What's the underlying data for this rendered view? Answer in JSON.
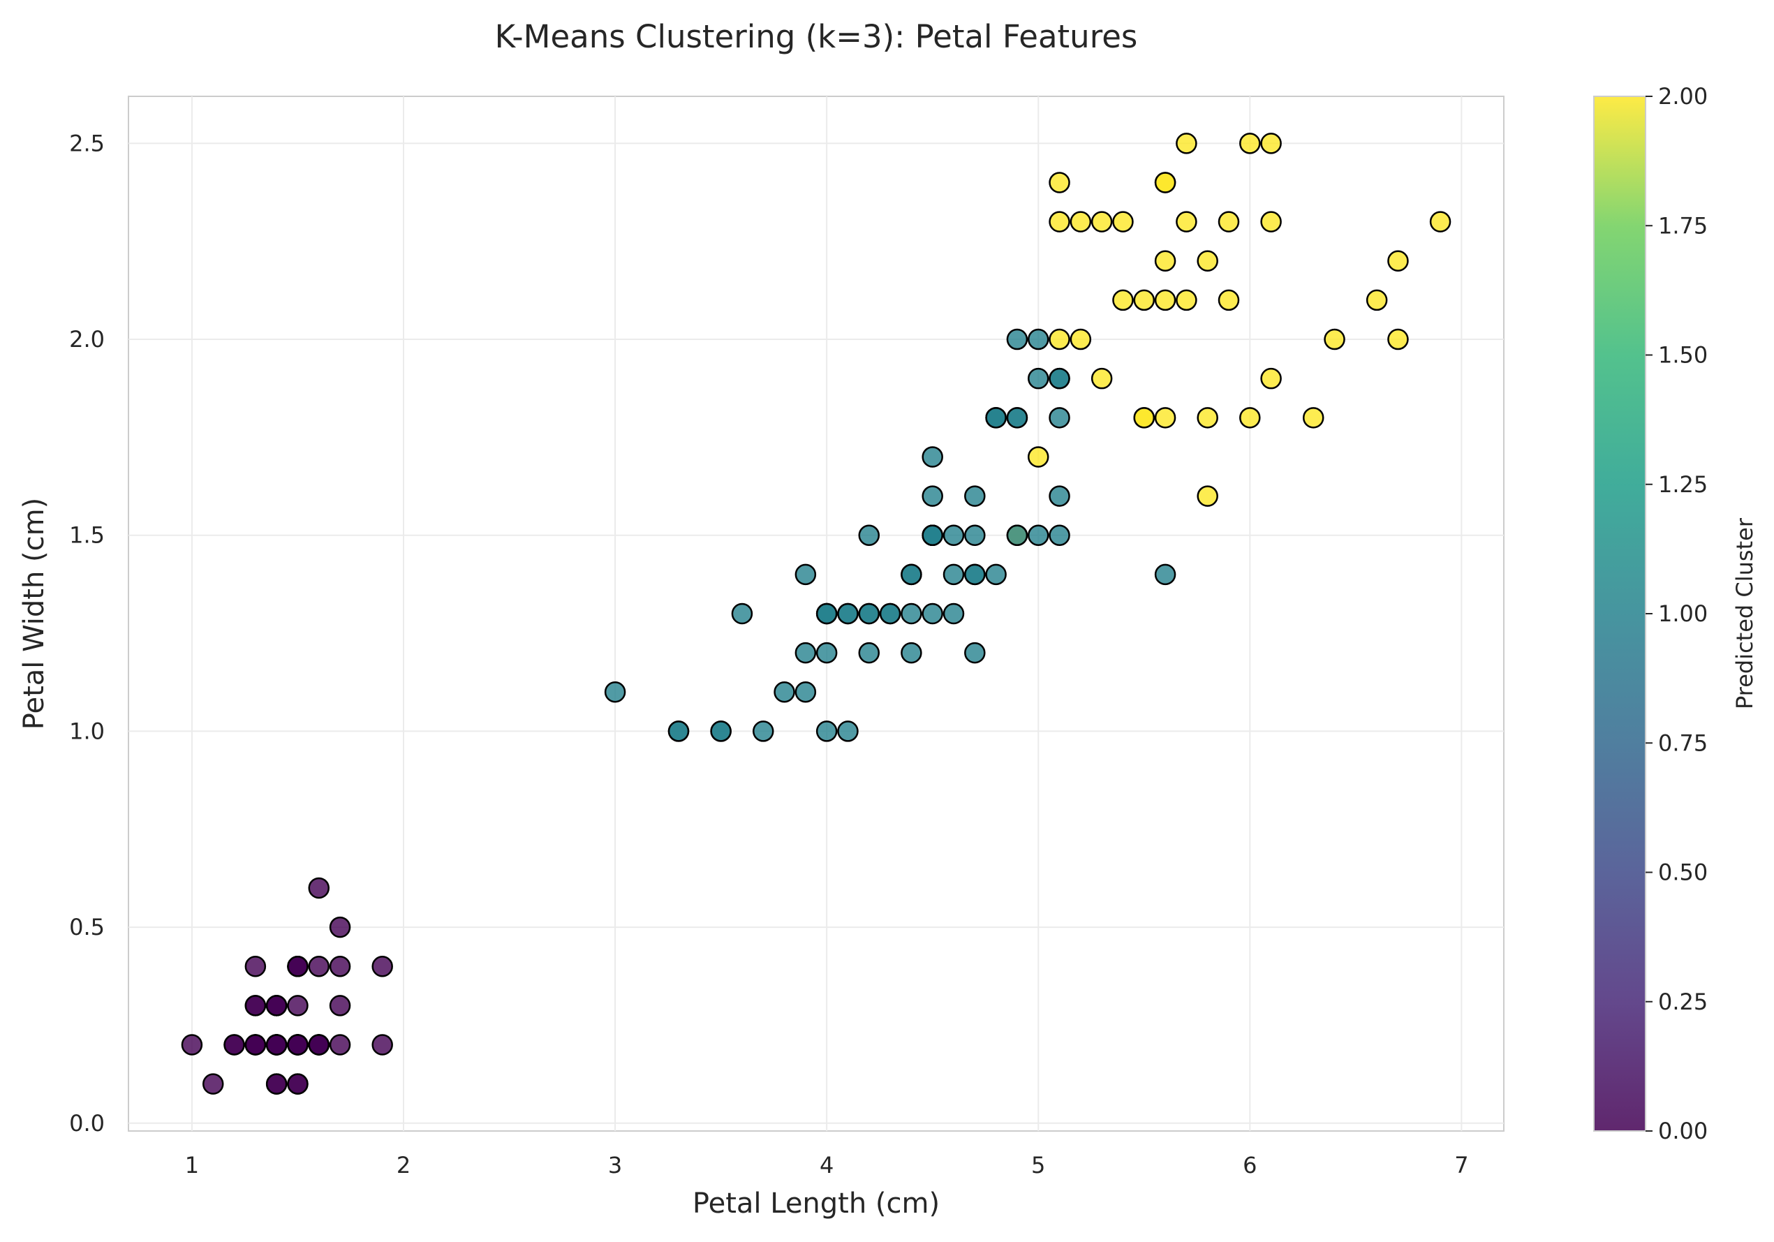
{
  "chart_data": {
    "type": "scatter",
    "title": "K-Means Clustering (k=3): Petal Features",
    "xlabel": "Petal Length (cm)",
    "ylabel": "Petal Width (cm)",
    "xlim": [
      0.7,
      7.2
    ],
    "ylim": [
      -0.02,
      2.62
    ],
    "xticks": [
      "1",
      "2",
      "3",
      "4",
      "5",
      "6",
      "7"
    ],
    "yticks": [
      "0.0",
      "0.5",
      "1.0",
      "1.5",
      "2.0",
      "2.5"
    ],
    "grid": true,
    "colorbar": {
      "label": "Predicted Cluster",
      "range": [
        0.0,
        2.0
      ],
      "ticks": [
        "0.00",
        "0.25",
        "0.50",
        "0.75",
        "1.00",
        "1.25",
        "1.50",
        "1.75",
        "2.00"
      ],
      "colormap": "viridis"
    },
    "points": [
      {
        "x": 1.4,
        "y": 0.2,
        "c": 0
      },
      {
        "x": 1.4,
        "y": 0.2,
        "c": 0
      },
      {
        "x": 1.3,
        "y": 0.2,
        "c": 0
      },
      {
        "x": 1.5,
        "y": 0.2,
        "c": 0
      },
      {
        "x": 1.4,
        "y": 0.2,
        "c": 0
      },
      {
        "x": 1.7,
        "y": 0.4,
        "c": 0
      },
      {
        "x": 1.4,
        "y": 0.3,
        "c": 0
      },
      {
        "x": 1.5,
        "y": 0.2,
        "c": 0
      },
      {
        "x": 1.4,
        "y": 0.2,
        "c": 0
      },
      {
        "x": 1.5,
        "y": 0.1,
        "c": 0
      },
      {
        "x": 1.5,
        "y": 0.2,
        "c": 0
      },
      {
        "x": 1.6,
        "y": 0.2,
        "c": 0
      },
      {
        "x": 1.4,
        "y": 0.1,
        "c": 0
      },
      {
        "x": 1.1,
        "y": 0.1,
        "c": 0
      },
      {
        "x": 1.2,
        "y": 0.2,
        "c": 0
      },
      {
        "x": 1.5,
        "y": 0.4,
        "c": 0
      },
      {
        "x": 1.3,
        "y": 0.4,
        "c": 0
      },
      {
        "x": 1.4,
        "y": 0.3,
        "c": 0
      },
      {
        "x": 1.7,
        "y": 0.3,
        "c": 0
      },
      {
        "x": 1.5,
        "y": 0.3,
        "c": 0
      },
      {
        "x": 1.7,
        "y": 0.2,
        "c": 0
      },
      {
        "x": 1.5,
        "y": 0.4,
        "c": 0
      },
      {
        "x": 1.0,
        "y": 0.2,
        "c": 0
      },
      {
        "x": 1.7,
        "y": 0.5,
        "c": 0
      },
      {
        "x": 1.9,
        "y": 0.2,
        "c": 0
      },
      {
        "x": 1.6,
        "y": 0.2,
        "c": 0
      },
      {
        "x": 1.6,
        "y": 0.4,
        "c": 0
      },
      {
        "x": 1.5,
        "y": 0.2,
        "c": 0
      },
      {
        "x": 1.4,
        "y": 0.2,
        "c": 0
      },
      {
        "x": 1.6,
        "y": 0.2,
        "c": 0
      },
      {
        "x": 1.6,
        "y": 0.2,
        "c": 0
      },
      {
        "x": 1.5,
        "y": 0.4,
        "c": 0
      },
      {
        "x": 1.5,
        "y": 0.1,
        "c": 0
      },
      {
        "x": 1.4,
        "y": 0.2,
        "c": 0
      },
      {
        "x": 1.5,
        "y": 0.2,
        "c": 0
      },
      {
        "x": 1.2,
        "y": 0.2,
        "c": 0
      },
      {
        "x": 1.3,
        "y": 0.2,
        "c": 0
      },
      {
        "x": 1.4,
        "y": 0.1,
        "c": 0
      },
      {
        "x": 1.3,
        "y": 0.2,
        "c": 0
      },
      {
        "x": 1.5,
        "y": 0.2,
        "c": 0
      },
      {
        "x": 1.3,
        "y": 0.3,
        "c": 0
      },
      {
        "x": 1.3,
        "y": 0.3,
        "c": 0
      },
      {
        "x": 1.3,
        "y": 0.2,
        "c": 0
      },
      {
        "x": 1.6,
        "y": 0.6,
        "c": 0
      },
      {
        "x": 1.9,
        "y": 0.4,
        "c": 0
      },
      {
        "x": 1.4,
        "y": 0.3,
        "c": 0
      },
      {
        "x": 1.6,
        "y": 0.2,
        "c": 0
      },
      {
        "x": 1.4,
        "y": 0.2,
        "c": 0
      },
      {
        "x": 1.5,
        "y": 0.2,
        "c": 0
      },
      {
        "x": 1.4,
        "y": 0.2,
        "c": 0
      },
      {
        "x": 4.7,
        "y": 1.4,
        "c": 1
      },
      {
        "x": 4.5,
        "y": 1.5,
        "c": 1
      },
      {
        "x": 4.9,
        "y": 1.5,
        "c": 2
      },
      {
        "x": 4.0,
        "y": 1.3,
        "c": 1
      },
      {
        "x": 4.6,
        "y": 1.5,
        "c": 1
      },
      {
        "x": 4.5,
        "y": 1.3,
        "c": 1
      },
      {
        "x": 4.7,
        "y": 1.6,
        "c": 1
      },
      {
        "x": 3.3,
        "y": 1.0,
        "c": 1
      },
      {
        "x": 4.6,
        "y": 1.3,
        "c": 1
      },
      {
        "x": 3.9,
        "y": 1.4,
        "c": 1
      },
      {
        "x": 3.5,
        "y": 1.0,
        "c": 1
      },
      {
        "x": 4.2,
        "y": 1.5,
        "c": 1
      },
      {
        "x": 4.0,
        "y": 1.0,
        "c": 1
      },
      {
        "x": 4.7,
        "y": 1.4,
        "c": 1
      },
      {
        "x": 3.6,
        "y": 1.3,
        "c": 1
      },
      {
        "x": 4.4,
        "y": 1.4,
        "c": 1
      },
      {
        "x": 4.5,
        "y": 1.5,
        "c": 1
      },
      {
        "x": 4.1,
        "y": 1.0,
        "c": 1
      },
      {
        "x": 4.5,
        "y": 1.5,
        "c": 1
      },
      {
        "x": 3.9,
        "y": 1.1,
        "c": 1
      },
      {
        "x": 4.8,
        "y": 1.8,
        "c": 1
      },
      {
        "x": 4.0,
        "y": 1.3,
        "c": 1
      },
      {
        "x": 4.9,
        "y": 1.5,
        "c": 1
      },
      {
        "x": 4.7,
        "y": 1.2,
        "c": 1
      },
      {
        "x": 4.3,
        "y": 1.3,
        "c": 1
      },
      {
        "x": 4.4,
        "y": 1.4,
        "c": 1
      },
      {
        "x": 4.8,
        "y": 1.4,
        "c": 1
      },
      {
        "x": 5.0,
        "y": 1.7,
        "c": 2
      },
      {
        "x": 4.5,
        "y": 1.5,
        "c": 1
      },
      {
        "x": 3.5,
        "y": 1.0,
        "c": 1
      },
      {
        "x": 3.8,
        "y": 1.1,
        "c": 1
      },
      {
        "x": 3.7,
        "y": 1.0,
        "c": 1
      },
      {
        "x": 3.9,
        "y": 1.2,
        "c": 1
      },
      {
        "x": 5.1,
        "y": 1.6,
        "c": 1
      },
      {
        "x": 4.5,
        "y": 1.5,
        "c": 1
      },
      {
        "x": 4.5,
        "y": 1.6,
        "c": 1
      },
      {
        "x": 4.7,
        "y": 1.5,
        "c": 1
      },
      {
        "x": 4.4,
        "y": 1.3,
        "c": 1
      },
      {
        "x": 4.1,
        "y": 1.3,
        "c": 1
      },
      {
        "x": 4.0,
        "y": 1.3,
        "c": 1
      },
      {
        "x": 4.4,
        "y": 1.2,
        "c": 1
      },
      {
        "x": 4.6,
        "y": 1.4,
        "c": 1
      },
      {
        "x": 4.0,
        "y": 1.2,
        "c": 1
      },
      {
        "x": 3.3,
        "y": 1.0,
        "c": 1
      },
      {
        "x": 4.2,
        "y": 1.3,
        "c": 1
      },
      {
        "x": 4.2,
        "y": 1.2,
        "c": 1
      },
      {
        "x": 4.2,
        "y": 1.3,
        "c": 1
      },
      {
        "x": 4.3,
        "y": 1.3,
        "c": 1
      },
      {
        "x": 3.0,
        "y": 1.1,
        "c": 1
      },
      {
        "x": 4.1,
        "y": 1.3,
        "c": 1
      },
      {
        "x": 6.0,
        "y": 2.5,
        "c": 2
      },
      {
        "x": 5.1,
        "y": 1.9,
        "c": 1
      },
      {
        "x": 5.9,
        "y": 2.1,
        "c": 2
      },
      {
        "x": 5.6,
        "y": 1.8,
        "c": 2
      },
      {
        "x": 5.8,
        "y": 2.2,
        "c": 2
      },
      {
        "x": 6.6,
        "y": 2.1,
        "c": 2
      },
      {
        "x": 4.5,
        "y": 1.7,
        "c": 1
      },
      {
        "x": 6.3,
        "y": 1.8,
        "c": 2
      },
      {
        "x": 5.8,
        "y": 1.8,
        "c": 2
      },
      {
        "x": 6.1,
        "y": 2.5,
        "c": 2
      },
      {
        "x": 5.1,
        "y": 2.0,
        "c": 2
      },
      {
        "x": 5.3,
        "y": 1.9,
        "c": 2
      },
      {
        "x": 5.5,
        "y": 2.1,
        "c": 2
      },
      {
        "x": 5.0,
        "y": 2.0,
        "c": 1
      },
      {
        "x": 5.1,
        "y": 2.4,
        "c": 2
      },
      {
        "x": 5.3,
        "y": 2.3,
        "c": 2
      },
      {
        "x": 5.5,
        "y": 1.8,
        "c": 2
      },
      {
        "x": 6.7,
        "y": 2.2,
        "c": 2
      },
      {
        "x": 6.9,
        "y": 2.3,
        "c": 2
      },
      {
        "x": 5.0,
        "y": 1.5,
        "c": 1
      },
      {
        "x": 5.7,
        "y": 2.3,
        "c": 2
      },
      {
        "x": 4.9,
        "y": 2.0,
        "c": 1
      },
      {
        "x": 6.7,
        "y": 2.0,
        "c": 2
      },
      {
        "x": 4.9,
        "y": 1.8,
        "c": 1
      },
      {
        "x": 5.7,
        "y": 2.1,
        "c": 2
      },
      {
        "x": 6.0,
        "y": 1.8,
        "c": 2
      },
      {
        "x": 4.8,
        "y": 1.8,
        "c": 1
      },
      {
        "x": 4.9,
        "y": 1.8,
        "c": 1
      },
      {
        "x": 5.6,
        "y": 2.1,
        "c": 2
      },
      {
        "x": 5.8,
        "y": 1.6,
        "c": 2
      },
      {
        "x": 6.1,
        "y": 1.9,
        "c": 2
      },
      {
        "x": 6.4,
        "y": 2.0,
        "c": 2
      },
      {
        "x": 5.6,
        "y": 2.2,
        "c": 2
      },
      {
        "x": 5.1,
        "y": 1.5,
        "c": 1
      },
      {
        "x": 5.6,
        "y": 1.4,
        "c": 1
      },
      {
        "x": 6.1,
        "y": 2.3,
        "c": 2
      },
      {
        "x": 5.6,
        "y": 2.4,
        "c": 2
      },
      {
        "x": 5.5,
        "y": 1.8,
        "c": 2
      },
      {
        "x": 4.8,
        "y": 1.8,
        "c": 1
      },
      {
        "x": 5.4,
        "y": 2.1,
        "c": 2
      },
      {
        "x": 5.6,
        "y": 2.4,
        "c": 2
      },
      {
        "x": 5.1,
        "y": 2.3,
        "c": 2
      },
      {
        "x": 5.1,
        "y": 1.9,
        "c": 1
      },
      {
        "x": 5.9,
        "y": 2.3,
        "c": 2
      },
      {
        "x": 5.7,
        "y": 2.5,
        "c": 2
      },
      {
        "x": 5.2,
        "y": 2.3,
        "c": 2
      },
      {
        "x": 5.0,
        "y": 1.9,
        "c": 1
      },
      {
        "x": 5.2,
        "y": 2.0,
        "c": 2
      },
      {
        "x": 5.4,
        "y": 2.3,
        "c": 2
      },
      {
        "x": 5.1,
        "y": 1.8,
        "c": 1
      }
    ]
  }
}
